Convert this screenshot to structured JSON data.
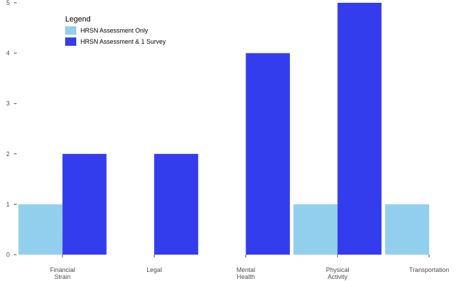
{
  "chart_data": {
    "type": "bar",
    "categories": [
      [
        "Financial",
        "Strain"
      ],
      [
        "Legal"
      ],
      [
        "Mental",
        "Health"
      ],
      [
        "Physical",
        "Activity"
      ],
      [
        "Transportation"
      ]
    ],
    "series": [
      {
        "name": "HRSN Assessment Only",
        "color": "#92cfed",
        "values": [
          1,
          0,
          0,
          1,
          1
        ]
      },
      {
        "name": "HRSN Assessment & 1 Survey",
        "color": "#333ded",
        "values": [
          2,
          2,
          4,
          5,
          0
        ]
      }
    ],
    "y_ticks": [
      0,
      1,
      2,
      3,
      4,
      5
    ],
    "ylim": [
      0,
      5
    ],
    "grid": false,
    "legend": {
      "title": "Legend",
      "position": "top-left"
    },
    "tick_color": "#4d4d4d"
  }
}
